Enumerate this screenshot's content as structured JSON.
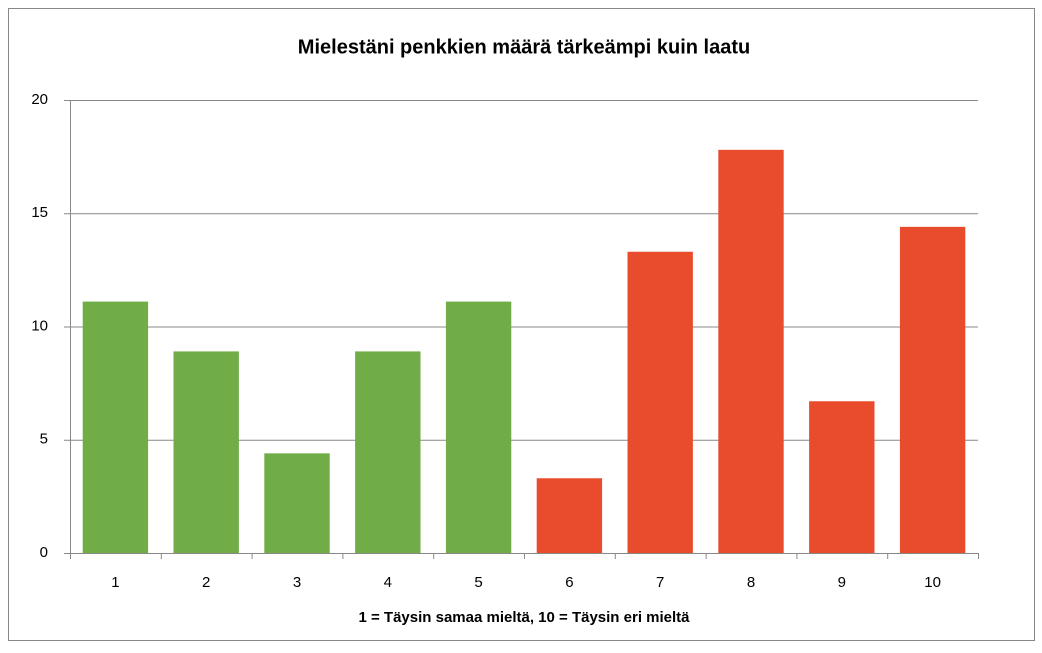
{
  "chart_data": {
    "type": "bar",
    "title": "Mielestäni penkkien määrä tärkeämpi kuin laatu",
    "xlabel": "1 = Täysin  samaa mieltä, 10 = Täysin  eri mieltä",
    "categories": [
      "1",
      "2",
      "3",
      "4",
      "5",
      "6",
      "7",
      "8",
      "9",
      "10"
    ],
    "values": [
      11.1,
      8.9,
      4.4,
      8.9,
      11.1,
      3.3,
      13.3,
      17.8,
      6.7,
      14.4
    ],
    "colors": [
      "#70ad47",
      "#70ad47",
      "#70ad47",
      "#70ad47",
      "#70ad47",
      "#e84c2c",
      "#e84c2c",
      "#e84c2c",
      "#e84c2c",
      "#e84c2c"
    ],
    "ylim": [
      0,
      20
    ],
    "yticks": [
      0,
      5,
      10,
      15,
      20
    ],
    "grid": true
  }
}
